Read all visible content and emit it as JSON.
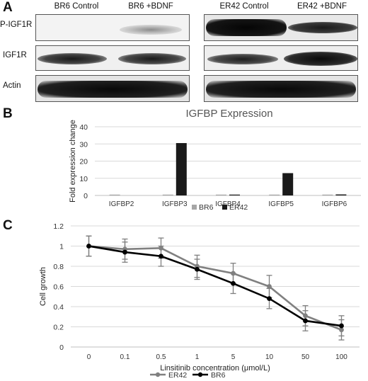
{
  "panel_a": {
    "letter": "A",
    "headers": [
      "BR6 Control",
      "BR6 +BDNF",
      "ER42 Control",
      "ER42 +BDNF"
    ],
    "rows": [
      "P-IGF1R",
      "IGF1R",
      "Actin"
    ]
  },
  "chart_data": [
    {
      "letter": "B",
      "type": "bar",
      "title": "IGFBP Expression",
      "xlabel": "",
      "ylabel": "Fold expression change",
      "ylim": [
        0,
        40
      ],
      "yticks": [
        "0",
        "10",
        "20",
        "30",
        "40"
      ],
      "grid": true,
      "legend_position": "bottom",
      "categories": [
        "IGFBP2",
        "IGFBP3",
        "IGFBP4",
        "IGFBP5",
        "IGFBP6"
      ],
      "series": [
        {
          "name": "BR6",
          "color": "#a6a6a6",
          "values": [
            0.5,
            0.5,
            0.5,
            0.5,
            0.5
          ]
        },
        {
          "name": "ER42",
          "color": "#1a1a1a",
          "values": [
            0,
            30.5,
            0.5,
            13,
            0.6
          ]
        }
      ]
    },
    {
      "letter": "C",
      "type": "line",
      "title": "",
      "xlabel": "Linsitinib concentration (μmol/L)",
      "ylabel": "Cell growth",
      "ylim": [
        0,
        1.2
      ],
      "yticks": [
        "0",
        "0.2",
        "0.4",
        "0.6",
        "0.8",
        "1",
        "1.2"
      ],
      "grid": true,
      "legend_position": "bottom",
      "categories": [
        "0",
        "0.1",
        "0.5",
        "1",
        "5",
        "10",
        "50",
        "100"
      ],
      "series": [
        {
          "name": "ER42",
          "color": "#808080",
          "values": [
            1.0,
            0.97,
            0.98,
            0.8,
            0.73,
            0.6,
            0.31,
            0.17
          ],
          "errors": [
            0.1,
            0.1,
            0.1,
            0.11,
            0.1,
            0.11,
            0.1,
            0.1
          ]
        },
        {
          "name": "BR6",
          "color": "#000000",
          "values": [
            1.0,
            0.94,
            0.9,
            0.77,
            0.63,
            0.48,
            0.26,
            0.21
          ],
          "errors": [
            0.1,
            0.1,
            0.1,
            0.1,
            0.1,
            0.1,
            0.1,
            0.1
          ]
        }
      ]
    }
  ]
}
